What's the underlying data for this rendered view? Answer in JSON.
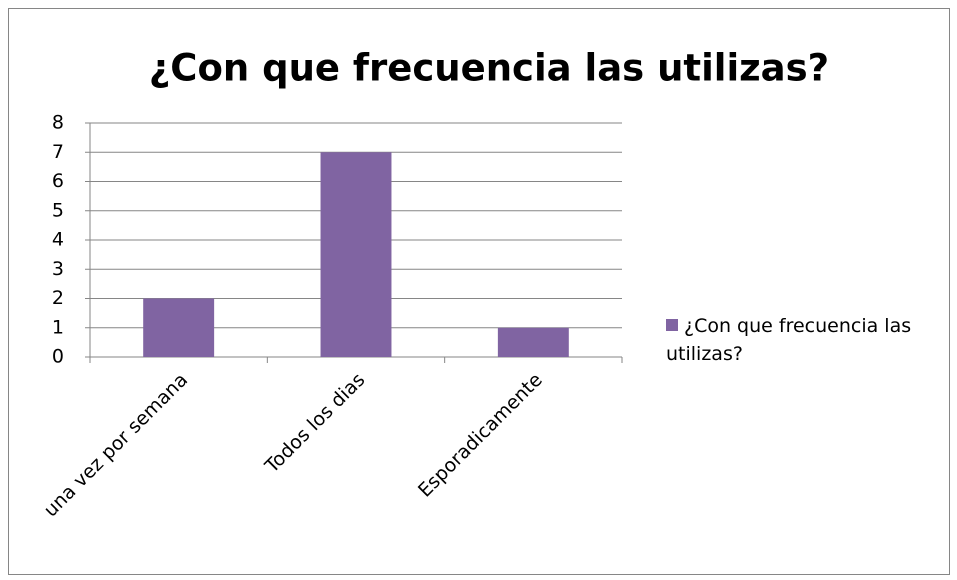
{
  "chart_data": {
    "type": "bar",
    "title": "¿Con que frecuencia las utilizas?",
    "categories": [
      "una vez por semana",
      "Todos los dias",
      "Esporadicamente"
    ],
    "series": [
      {
        "name": "¿Con que frecuencia las utilizas?",
        "color": "#8064a2",
        "values": [
          2,
          7,
          1
        ]
      }
    ],
    "ylim": [
      0,
      8
    ],
    "yticks": [
      0,
      1,
      2,
      3,
      4,
      5,
      6,
      7,
      8
    ],
    "grid": true,
    "legend": "right"
  }
}
